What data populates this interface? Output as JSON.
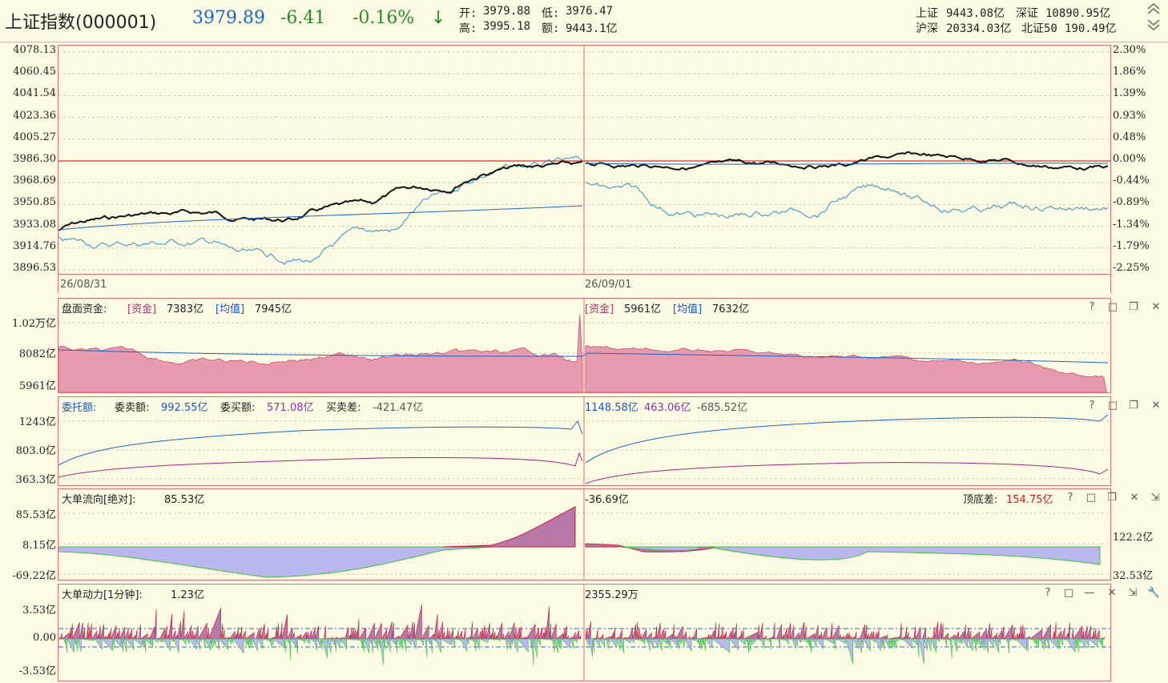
{
  "header": {
    "index_name": "上证指数(000001)",
    "price": "3979.89",
    "change": "-6.41",
    "change_pct": "-0.16%",
    "arrow": "↓",
    "open_label": "开:",
    "open_val": "3979.88",
    "low_label": "低:",
    "low_val": "3976.47",
    "high_label": "高:",
    "high_val": "3995.18",
    "amount_label": "额:",
    "amount_val": "9443.1亿",
    "sh_label": "上证",
    "sh_val": "9443.08亿",
    "sz_label": "深证",
    "sz_val": "10890.95亿",
    "hs_label": "沪深",
    "hs_val": "20334.03亿",
    "bz_label": "北证50",
    "bz_val": "190.49亿"
  },
  "main_chart": {
    "left_ticks": [
      "4078.13",
      "4060.45",
      "4041.54",
      "4023.36",
      "4005.27",
      "3986.30",
      "3968.69",
      "3950.85",
      "3933.08",
      "3914.76",
      "3896.53"
    ],
    "right_ticks": [
      "2.30%",
      "1.86%",
      "1.39%",
      "0.93%",
      "0.48%",
      "0.00%",
      "-0.44%",
      "-0.89%",
      "-1.34%",
      "-1.79%",
      "-2.25%"
    ],
    "date1": "26/08/31",
    "date2": "26/09/01"
  },
  "panel_funds": {
    "title": "盘面资金:",
    "tag_fund": "[资金]",
    "fund1": "7383亿",
    "tag_avg": "[均值]",
    "avg1": "7945亿",
    "tag_fund2": "[资金]",
    "fund2": "5961亿",
    "tag_avg2": "[均值]",
    "avg2": "7632亿",
    "ticks": [
      "1.02万亿",
      "8082亿",
      "5961亿"
    ]
  },
  "panel_orders": {
    "title": "委托额:",
    "sell_label": "委卖额:",
    "sell_val": "992.55亿",
    "buy_label": "委买额:",
    "buy_val": "571.08亿",
    "diff_label": "买卖差:",
    "diff_val": "-421.47亿",
    "sell2": "1148.58亿",
    "buy2": "463.06亿",
    "diff2": "-685.52亿",
    "ticks": [
      "1243亿",
      "803.0亿",
      "363.3亿"
    ]
  },
  "panel_bigflow": {
    "title": "大单流向[绝对]:",
    "val1": "85.53亿",
    "val2": "-36.69亿",
    "gap_label": "顶底差:",
    "gap_val": "154.75亿",
    "ticks": [
      "85.53亿",
      "8.15亿",
      "-69.22亿"
    ],
    "right_ticks": [
      "122.2亿",
      "32.53亿"
    ]
  },
  "panel_momentum": {
    "title": "大单动力[1分钟]:",
    "val1": "1.23亿",
    "val2": "2355.29万",
    "ticks": [
      "3.53亿",
      "0.00",
      "-3.53亿"
    ]
  },
  "tools": {
    "help": "?",
    "max": "□",
    "restore": "❐",
    "close": "✕",
    "min": "—",
    "export": "⇲",
    "wrench": "🔧"
  },
  "colors": {
    "panel_border": "#e07070",
    "price_line": "#111111",
    "avg_line": "#2070c0",
    "area_fill": "#e89aae",
    "positive_fill": "#b878a8",
    "negative_fill": "#b8b8ee"
  }
}
